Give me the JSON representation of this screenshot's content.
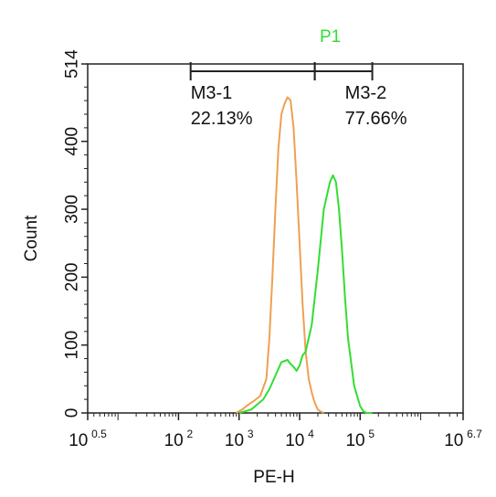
{
  "chart_data": {
    "type": "line",
    "title": "",
    "xlabel": "PE-H",
    "ylabel": "Count",
    "x_scale": "log10",
    "xlim_log10": [
      0.5,
      6.7
    ],
    "ylim": [
      0,
      514
    ],
    "y_ticks": [
      0,
      100,
      200,
      300,
      400,
      514
    ],
    "y_tick_labels": [
      "0",
      "100",
      "200",
      "300",
      "400",
      "514"
    ],
    "x_ticks": [
      {
        "exp": 0.5,
        "base": "10",
        "sup": "0.5"
      },
      {
        "exp": 2,
        "base": "10",
        "sup": "2"
      },
      {
        "exp": 3,
        "base": "10",
        "sup": "3"
      },
      {
        "exp": 4,
        "base": "10",
        "sup": "4"
      },
      {
        "exp": 5,
        "base": "10",
        "sup": "5"
      },
      {
        "exp": 6.7,
        "base": "10",
        "sup": "6.7"
      }
    ],
    "legend": [
      {
        "name": "P1",
        "color": "#33dd33"
      }
    ],
    "gates": [
      {
        "name": "M3-1",
        "percent": "22.13%",
        "from_log10": 2.2,
        "to_log10": 4.25
      },
      {
        "name": "M3-2",
        "percent": "77.66%",
        "from_log10": 4.25,
        "to_log10": 5.2
      }
    ],
    "series": [
      {
        "name": "",
        "color": "#f0a050",
        "log10_x": [
          2.95,
          3.05,
          3.15,
          3.25,
          3.35,
          3.45,
          3.5,
          3.55,
          3.6,
          3.65,
          3.7,
          3.75,
          3.8,
          3.85,
          3.9,
          3.95,
          4.0,
          4.05,
          4.1,
          4.15,
          4.2,
          4.25,
          4.3,
          4.35,
          4.4
        ],
        "values": [
          0,
          5,
          12,
          18,
          25,
          50,
          110,
          200,
          300,
          390,
          440,
          455,
          465,
          460,
          420,
          340,
          250,
          160,
          90,
          50,
          30,
          15,
          5,
          2,
          0
        ]
      },
      {
        "name": "P1",
        "color": "#33dd33",
        "log10_x": [
          3.0,
          3.2,
          3.4,
          3.5,
          3.6,
          3.7,
          3.8,
          3.85,
          3.9,
          3.95,
          4.0,
          4.05,
          4.1,
          4.2,
          4.3,
          4.4,
          4.5,
          4.55,
          4.6,
          4.65,
          4.7,
          4.75,
          4.8,
          4.9,
          5.0,
          5.05,
          5.1,
          5.2
        ],
        "values": [
          0,
          5,
          20,
          35,
          55,
          75,
          78,
          72,
          68,
          62,
          70,
          85,
          90,
          130,
          210,
          300,
          340,
          350,
          340,
          300,
          240,
          170,
          110,
          40,
          10,
          3,
          0,
          0
        ]
      }
    ]
  }
}
